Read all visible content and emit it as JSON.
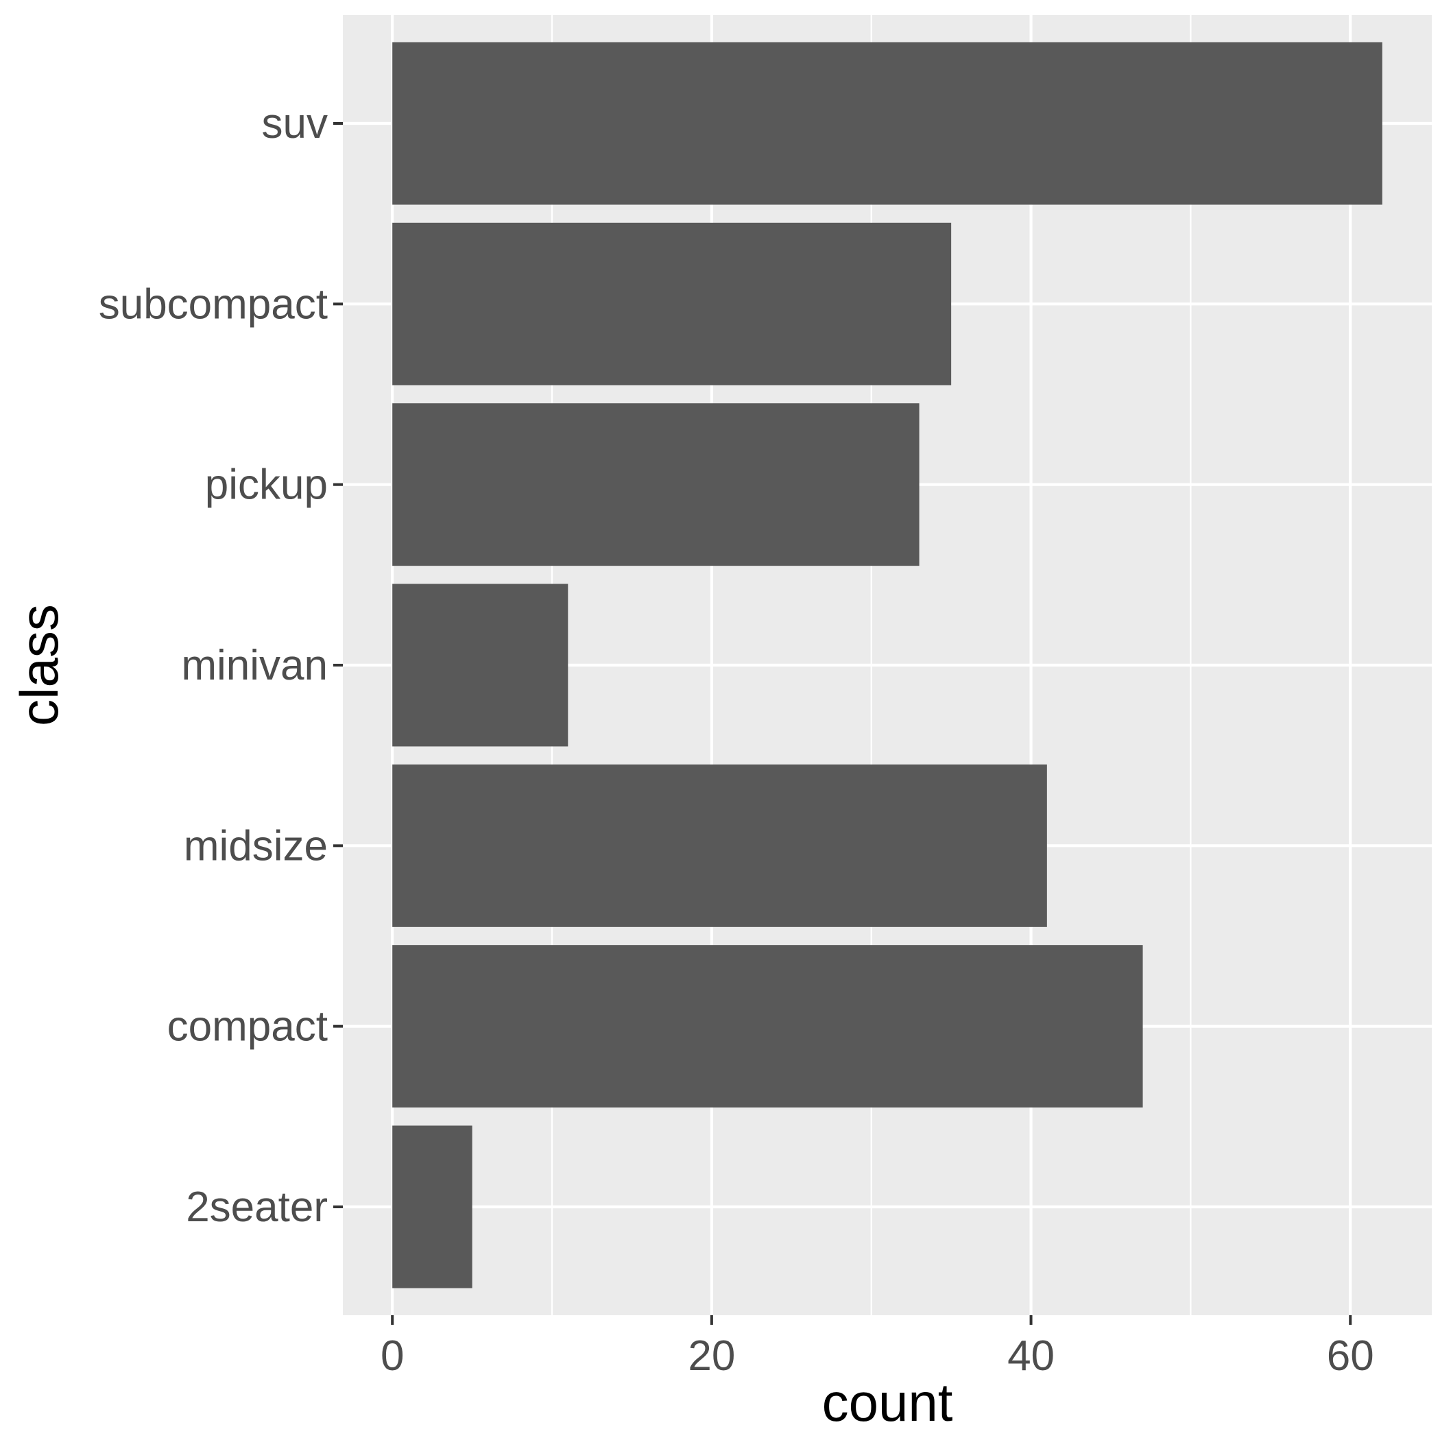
{
  "chart_data": {
    "type": "bar",
    "orientation": "horizontal",
    "categories": [
      "2seater",
      "compact",
      "midsize",
      "minivan",
      "pickup",
      "subcompact",
      "suv"
    ],
    "values": [
      5,
      47,
      41,
      11,
      33,
      35,
      62
    ],
    "xlabel": "count",
    "ylabel": "class",
    "xlim": [
      -3.1,
      65.1
    ],
    "x_ticks": [
      0,
      20,
      40,
      60
    ],
    "x_minor_ticks": [
      10,
      30,
      50
    ],
    "grid": true,
    "legend": "none",
    "colors": {
      "bar": "#595959",
      "panel_background": "#ebebeb",
      "grid": "#ffffff",
      "tick_text": "#4d4d4d",
      "tick_mark": "#333333",
      "axis_title": "#000000"
    }
  }
}
